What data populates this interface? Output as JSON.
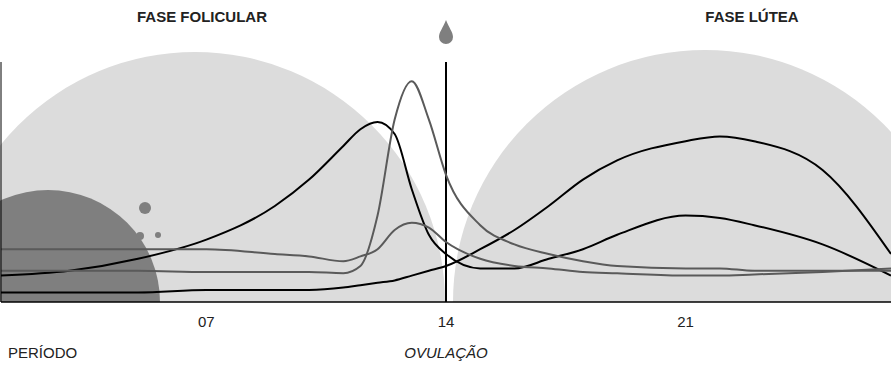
{
  "chart_data": {
    "type": "line",
    "tick_labels": "x",
    "xlim": [
      1,
      27
    ],
    "xticks": [
      {
        "value": 7,
        "label": "07"
      },
      14,
      21
    ],
    "ylim": [
      0,
      100
    ],
    "grid": false,
    "annotations": [
      {
        "text": "FASE FOLICULAR"
      },
      {
        "text": "FASE LÚTEA"
      },
      {
        "text": "PERÍODO"
      },
      {
        "text": "OVULAÇÃO",
        "x": 14
      }
    ],
    "x": [
      1,
      3,
      5,
      7,
      9,
      10,
      11,
      11.5,
      12,
      12.5,
      13,
      13.5,
      14,
      15,
      16,
      17,
      18,
      19,
      21,
      22,
      23,
      25,
      27
    ],
    "series": [
      {
        "color": "#000000",
        "values": [
          11,
          13,
          18,
          26,
          40,
          51,
          65,
          72,
          75,
          70,
          47,
          28,
          20,
          14,
          14,
          18,
          22,
          28,
          36,
          35,
          32,
          24,
          11
        ]
      },
      {
        "color": "#000000",
        "values": [
          4,
          4,
          4,
          5,
          5,
          5,
          6,
          7,
          8,
          9,
          11,
          13,
          15,
          22,
          30,
          40,
          51,
          59,
          67,
          69,
          67,
          55,
          20
        ]
      },
      {
        "color": "#5a5a5a",
        "values": [
          13,
          13,
          13,
          12.5,
          12.5,
          12.5,
          12,
          15,
          36,
          76,
          92,
          76,
          53,
          32,
          24,
          20,
          17,
          15,
          14,
          14,
          13,
          13,
          13
        ]
      },
      {
        "color": "#5a5a5a",
        "values": [
          22,
          22,
          22,
          22,
          20,
          19,
          17,
          19,
          22,
          30,
          33,
          31,
          25,
          18,
          15,
          14,
          12.5,
          12,
          11,
          11,
          11.5,
          12.5,
          14
        ]
      }
    ]
  }
}
